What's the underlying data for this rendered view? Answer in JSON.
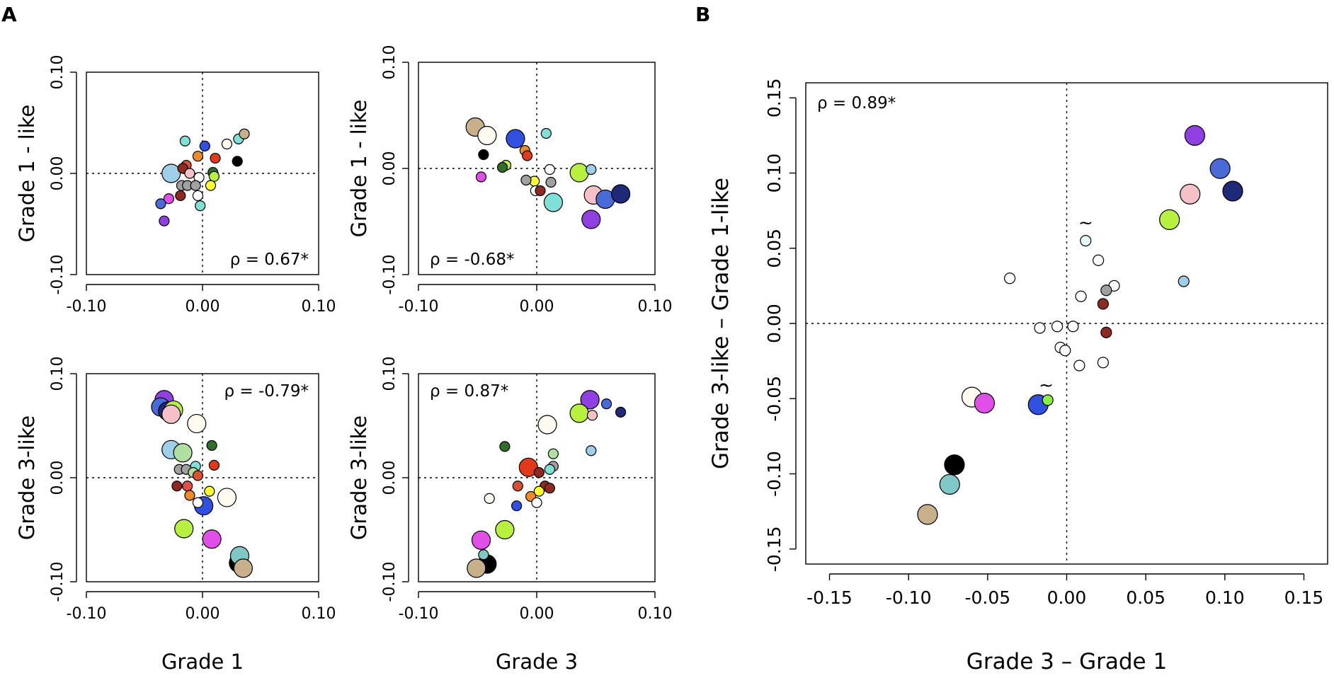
{
  "panels": {
    "A": "A",
    "B": "B"
  },
  "chart_data": [
    {
      "id": "A1",
      "type": "scatter",
      "xlabel": "",
      "ylabel": "Grade 1 - like",
      "xlim": [
        -0.1,
        0.1
      ],
      "ylim": [
        -0.1,
        0.1
      ],
      "xticks": [
        -0.1,
        0.0,
        0.1
      ],
      "yticks": [
        -0.1,
        0.0,
        0.1
      ],
      "xtick_labels": [
        "-0.10",
        "0.00",
        "0.10"
      ],
      "ytick_labels": [
        "-0.10",
        "0.00",
        "0.10"
      ],
      "annotation": "ρ = 0.67*",
      "annotation_position": "bottom-right",
      "points": [
        {
          "x": -0.015,
          "y": 0.032,
          "color": "#7fe0d8",
          "s": 1
        },
        {
          "x": 0.002,
          "y": 0.027,
          "color": "#3050e0",
          "s": 1
        },
        {
          "x": 0.021,
          "y": 0.029,
          "color": "#fffaf0",
          "s": 1
        },
        {
          "x": 0.031,
          "y": 0.034,
          "color": "#7fe0d8",
          "s": 1
        },
        {
          "x": 0.036,
          "y": 0.039,
          "color": "#c8b08a",
          "s": 1
        },
        {
          "x": -0.004,
          "y": 0.017,
          "color": "#f08a28",
          "s": 1
        },
        {
          "x": 0.011,
          "y": 0.015,
          "color": "#e03a18",
          "s": 1
        },
        {
          "x": 0.03,
          "y": 0.012,
          "color": "#000000",
          "s": 1
        },
        {
          "x": -0.014,
          "y": 0.008,
          "color": "#d85030",
          "s": 1
        },
        {
          "x": -0.017,
          "y": 0.005,
          "color": "#8e2a22",
          "s": 1
        },
        {
          "x": -0.027,
          "y": 0.0,
          "color": "#9fcfe8",
          "s": 3
        },
        {
          "x": -0.011,
          "y": 0.0,
          "color": "#f5c0c8",
          "s": 1
        },
        {
          "x": -0.003,
          "y": -0.004,
          "color": "#ffffff",
          "s": 1
        },
        {
          "x": 0.009,
          "y": 0.001,
          "color": "#2e6e28",
          "s": 1
        },
        {
          "x": 0.01,
          "y": -0.003,
          "color": "#b8f040",
          "s": 1
        },
        {
          "x": 0.007,
          "y": -0.012,
          "color": "#ffff30",
          "s": 1
        },
        {
          "x": -0.018,
          "y": -0.012,
          "color": "#a0a0a0",
          "s": 1
        },
        {
          "x": -0.013,
          "y": -0.012,
          "color": "#a0a0a0",
          "s": 1
        },
        {
          "x": -0.006,
          "y": -0.012,
          "color": "#a0a0a0",
          "s": 1
        },
        {
          "x": -0.004,
          "y": -0.022,
          "color": "#ffffff",
          "s": 1
        },
        {
          "x": -0.019,
          "y": -0.022,
          "color": "#8e2a22",
          "s": 1
        },
        {
          "x": -0.029,
          "y": -0.025,
          "color": "#e050e8",
          "s": 1
        },
        {
          "x": -0.002,
          "y": -0.032,
          "color": "#7fe0d8",
          "s": 1
        },
        {
          "x": -0.036,
          "y": -0.03,
          "color": "#4a6ad8",
          "s": 1
        },
        {
          "x": -0.033,
          "y": -0.047,
          "color": "#9040e0",
          "s": 1
        }
      ]
    },
    {
      "id": "A2",
      "type": "scatter",
      "xlabel": "",
      "ylabel": "Grade 1 - like",
      "xlim": [
        -0.1,
        0.1
      ],
      "ylim": [
        -0.1,
        0.1
      ],
      "xticks": [
        -0.1,
        0.0,
        0.1
      ],
      "yticks": [
        -0.1,
        0.0,
        0.1
      ],
      "xtick_labels": [
        "-0.10",
        "0.00",
        "0.10"
      ],
      "ytick_labels": [
        "-0.10",
        "0.00",
        "0.10"
      ],
      "annotation": "ρ = -0.68*",
      "annotation_position": "bottom-left",
      "points": [
        {
          "x": -0.052,
          "y": 0.039,
          "color": "#c8b08a",
          "s": 3
        },
        {
          "x": -0.042,
          "y": 0.031,
          "color": "#fffaf0",
          "s": 3
        },
        {
          "x": -0.018,
          "y": 0.028,
          "color": "#3050e0",
          "s": 3
        },
        {
          "x": 0.008,
          "y": 0.033,
          "color": "#7fe0d8",
          "s": 1
        },
        {
          "x": -0.045,
          "y": 0.013,
          "color": "#000000",
          "s": 1
        },
        {
          "x": -0.01,
          "y": 0.017,
          "color": "#f08a28",
          "s": 1
        },
        {
          "x": -0.008,
          "y": 0.012,
          "color": "#e03a18",
          "s": 1
        },
        {
          "x": -0.026,
          "y": 0.003,
          "color": "#b8f040",
          "s": 1
        },
        {
          "x": -0.029,
          "y": 0.001,
          "color": "#2e6e28",
          "s": 1
        },
        {
          "x": -0.047,
          "y": -0.008,
          "color": "#e050e8",
          "s": 1
        },
        {
          "x": 0.011,
          "y": -0.001,
          "color": "#ffffff",
          "s": 1
        },
        {
          "x": 0.046,
          "y": -0.001,
          "color": "#9fcfe8",
          "s": 1
        },
        {
          "x": 0.036,
          "y": -0.004,
          "color": "#b8f040",
          "s": 3
        },
        {
          "x": -0.002,
          "y": -0.012,
          "color": "#ffff30",
          "s": 1
        },
        {
          "x": -0.009,
          "y": -0.011,
          "color": "#a0a0a0",
          "s": 1
        },
        {
          "x": 0.012,
          "y": -0.013,
          "color": "#a0a0a0",
          "s": 1
        },
        {
          "x": -0.001,
          "y": -0.021,
          "color": "#ffffff",
          "s": 1
        },
        {
          "x": 0.003,
          "y": -0.021,
          "color": "#8e2a22",
          "s": 1
        },
        {
          "x": 0.014,
          "y": -0.032,
          "color": "#7fe0d8",
          "s": 3
        },
        {
          "x": 0.048,
          "y": -0.025,
          "color": "#f5c0c8",
          "s": 3
        },
        {
          "x": 0.058,
          "y": -0.029,
          "color": "#4a6ad8",
          "s": 3
        },
        {
          "x": 0.071,
          "y": -0.024,
          "color": "#1e2a78",
          "s": 3
        },
        {
          "x": 0.046,
          "y": -0.048,
          "color": "#9040e0",
          "s": 3
        }
      ]
    },
    {
      "id": "A3",
      "type": "scatter",
      "xlabel": "Grade 1",
      "ylabel": "Grade 3-like",
      "xlim": [
        -0.1,
        0.1
      ],
      "ylim": [
        -0.1,
        0.1
      ],
      "xticks": [
        -0.1,
        0.0,
        0.1
      ],
      "yticks": [
        -0.1,
        0.0,
        0.1
      ],
      "xtick_labels": [
        "-0.10",
        "0.00",
        "0.10"
      ],
      "ytick_labels": [
        "-0.10",
        "0.00",
        "0.10"
      ],
      "annotation": "ρ = -0.79*",
      "annotation_position": "top-right",
      "points": [
        {
          "x": -0.033,
          "y": 0.075,
          "color": "#9040e0",
          "s": 3
        },
        {
          "x": -0.036,
          "y": 0.068,
          "color": "#4a6ad8",
          "s": 3
        },
        {
          "x": -0.03,
          "y": 0.064,
          "color": "#1e2a78",
          "s": 3
        },
        {
          "x": -0.025,
          "y": 0.065,
          "color": "#b8f040",
          "s": 3
        },
        {
          "x": -0.027,
          "y": 0.061,
          "color": "#f5c0c8",
          "s": 3
        },
        {
          "x": -0.005,
          "y": 0.052,
          "color": "#fffaf0",
          "s": 3
        },
        {
          "x": 0.008,
          "y": 0.031,
          "color": "#2e6e28",
          "s": 1
        },
        {
          "x": -0.027,
          "y": 0.027,
          "color": "#9fcfe8",
          "s": 3
        },
        {
          "x": -0.017,
          "y": 0.024,
          "color": "#b0e0a0",
          "s": 3
        },
        {
          "x": 0.01,
          "y": 0.012,
          "color": "#e03a18",
          "s": 1
        },
        {
          "x": -0.006,
          "y": 0.011,
          "color": "#7fe0d8",
          "s": 1
        },
        {
          "x": -0.02,
          "y": 0.008,
          "color": "#a0a0a0",
          "s": 1
        },
        {
          "x": -0.014,
          "y": 0.008,
          "color": "#a0a0a0",
          "s": 1
        },
        {
          "x": -0.008,
          "y": 0.005,
          "color": "#b0e0a0",
          "s": 1
        },
        {
          "x": -0.004,
          "y": 0.002,
          "color": "#d85030",
          "s": 1
        },
        {
          "x": -0.022,
          "y": -0.008,
          "color": "#8e2a22",
          "s": 1
        },
        {
          "x": -0.013,
          "y": -0.008,
          "color": "#e05048",
          "s": 1
        },
        {
          "x": 0.006,
          "y": -0.013,
          "color": "#ffff30",
          "s": 1
        },
        {
          "x": -0.011,
          "y": -0.017,
          "color": "#f08a28",
          "s": 1
        },
        {
          "x": 0.021,
          "y": -0.019,
          "color": "#fffaf0",
          "s": 3
        },
        {
          "x": -0.004,
          "y": -0.024,
          "color": "#ffffff",
          "s": 1
        },
        {
          "x": 0.001,
          "y": -0.027,
          "color": "#3050e0",
          "s": 3
        },
        {
          "x": -0.016,
          "y": -0.049,
          "color": "#b8f040",
          "s": 3
        },
        {
          "x": 0.008,
          "y": -0.059,
          "color": "#e050e8",
          "s": 3
        },
        {
          "x": 0.031,
          "y": -0.082,
          "color": "#000000",
          "s": 3
        },
        {
          "x": 0.032,
          "y": -0.075,
          "color": "#7fc8c8",
          "s": 3
        },
        {
          "x": 0.035,
          "y": -0.087,
          "color": "#c8b08a",
          "s": 3
        }
      ]
    },
    {
      "id": "A4",
      "type": "scatter",
      "xlabel": "Grade 3",
      "ylabel": "Grade 3-like",
      "xlim": [
        -0.1,
        0.1
      ],
      "ylim": [
        -0.1,
        0.1
      ],
      "xticks": [
        -0.1,
        0.0,
        0.1
      ],
      "yticks": [
        -0.1,
        0.0,
        0.1
      ],
      "xtick_labels": [
        "-0.10",
        "0.00",
        "0.10"
      ],
      "ytick_labels": [
        "-0.10",
        "0.00",
        "0.10"
      ],
      "annotation": "ρ = 0.87*",
      "annotation_position": "top-left",
      "points": [
        {
          "x": 0.045,
          "y": 0.075,
          "color": "#9040e0",
          "s": 3
        },
        {
          "x": 0.059,
          "y": 0.071,
          "color": "#4a6ad8",
          "s": 1
        },
        {
          "x": 0.071,
          "y": 0.063,
          "color": "#1e2a78",
          "s": 1
        },
        {
          "x": 0.036,
          "y": 0.062,
          "color": "#b8f040",
          "s": 3
        },
        {
          "x": 0.047,
          "y": 0.06,
          "color": "#f5c0c8",
          "s": 1
        },
        {
          "x": 0.009,
          "y": 0.051,
          "color": "#fffaf0",
          "s": 3
        },
        {
          "x": -0.027,
          "y": 0.03,
          "color": "#2e6e28",
          "s": 1
        },
        {
          "x": 0.046,
          "y": 0.026,
          "color": "#9fcfe8",
          "s": 1
        },
        {
          "x": 0.014,
          "y": 0.023,
          "color": "#b0e0a0",
          "s": 1
        },
        {
          "x": -0.007,
          "y": 0.01,
          "color": "#e03a18",
          "s": 3
        },
        {
          "x": 0.014,
          "y": 0.011,
          "color": "#a0a0a0",
          "s": 1
        },
        {
          "x": 0.011,
          "y": 0.008,
          "color": "#7fe0d8",
          "s": 1
        },
        {
          "x": 0.002,
          "y": 0.005,
          "color": "#8e2a22",
          "s": 1
        },
        {
          "x": -0.016,
          "y": -0.008,
          "color": "#d85030",
          "s": 1
        },
        {
          "x": 0.007,
          "y": -0.008,
          "color": "#8e2a22",
          "s": 1
        },
        {
          "x": 0.011,
          "y": -0.01,
          "color": "#8e2a22",
          "s": 1
        },
        {
          "x": 0.002,
          "y": -0.013,
          "color": "#ffff30",
          "s": 1
        },
        {
          "x": -0.005,
          "y": -0.018,
          "color": "#f08a28",
          "s": 1
        },
        {
          "x": -0.04,
          "y": -0.02,
          "color": "#fffaf0",
          "s": 1
        },
        {
          "x": -0.017,
          "y": -0.027,
          "color": "#3050e0",
          "s": 1
        },
        {
          "x": 0.0,
          "y": -0.024,
          "color": "#ffffff",
          "s": 1
        },
        {
          "x": -0.027,
          "y": -0.05,
          "color": "#b8f040",
          "s": 3
        },
        {
          "x": -0.045,
          "y": -0.074,
          "color": "#7fc8c8",
          "s": 1
        },
        {
          "x": -0.047,
          "y": -0.06,
          "color": "#e050e8",
          "s": 3
        },
        {
          "x": -0.042,
          "y": -0.083,
          "color": "#000000",
          "s": 3
        },
        {
          "x": -0.051,
          "y": -0.087,
          "color": "#c8b08a",
          "s": 3
        }
      ]
    },
    {
      "id": "B",
      "type": "scatter",
      "xlabel": "Grade 3 – Grade 1",
      "ylabel": "Grade 3-like – Grade 1-like",
      "xlim": [
        -0.165,
        0.165
      ],
      "ylim": [
        -0.16,
        0.16
      ],
      "xticks": [
        -0.15,
        -0.1,
        -0.05,
        0.0,
        0.05,
        0.1,
        0.15
      ],
      "yticks": [
        -0.15,
        -0.1,
        -0.05,
        0.0,
        0.05,
        0.1,
        0.15
      ],
      "xtick_labels": [
        "-0.15",
        "-0.10",
        "-0.05",
        "0.00",
        "0.05",
        "0.10",
        "0.15"
      ],
      "ytick_labels": [
        "-0.15",
        "-0.10",
        "-0.05",
        "0.00",
        "0.05",
        "0.10",
        "0.15"
      ],
      "annotation": "ρ = 0.89*",
      "annotation_position": "top-left",
      "tilde_labels": [
        {
          "text": "~",
          "x": 0.012,
          "y": 0.063
        },
        {
          "text": "~",
          "x": -0.013,
          "y": -0.045
        }
      ],
      "points": [
        {
          "x": 0.081,
          "y": 0.125,
          "color": "#9040e0",
          "s": 3
        },
        {
          "x": 0.097,
          "y": 0.103,
          "color": "#4a6ad8",
          "s": 3
        },
        {
          "x": 0.105,
          "y": 0.088,
          "color": "#1e2a78",
          "s": 3
        },
        {
          "x": 0.078,
          "y": 0.086,
          "color": "#f5c0c8",
          "s": 3
        },
        {
          "x": 0.065,
          "y": 0.069,
          "color": "#b8f040",
          "s": 3
        },
        {
          "x": 0.012,
          "y": 0.055,
          "color": "#e0f8f8",
          "s": 1
        },
        {
          "x": 0.02,
          "y": 0.042,
          "color": "#ffffff",
          "s": 1
        },
        {
          "x": -0.036,
          "y": 0.03,
          "color": "#ffffff",
          "s": 1
        },
        {
          "x": 0.074,
          "y": 0.028,
          "color": "#9fcfe8",
          "s": 1
        },
        {
          "x": 0.03,
          "y": 0.025,
          "color": "#ffffff",
          "s": 1
        },
        {
          "x": 0.025,
          "y": 0.022,
          "color": "#a0a0a0",
          "s": 1
        },
        {
          "x": 0.009,
          "y": 0.018,
          "color": "#ffffff",
          "s": 1
        },
        {
          "x": 0.023,
          "y": 0.013,
          "color": "#8e2a22",
          "s": 1
        },
        {
          "x": -0.017,
          "y": -0.003,
          "color": "#ffffff",
          "s": 1
        },
        {
          "x": -0.006,
          "y": -0.002,
          "color": "#ffffff",
          "s": 1
        },
        {
          "x": 0.004,
          "y": -0.002,
          "color": "#ffffff",
          "s": 1
        },
        {
          "x": 0.025,
          "y": -0.006,
          "color": "#8e2a22",
          "s": 1
        },
        {
          "x": -0.004,
          "y": -0.016,
          "color": "#ffffff",
          "s": 1
        },
        {
          "x": -0.001,
          "y": -0.018,
          "color": "#ffffff",
          "s": 1
        },
        {
          "x": 0.023,
          "y": -0.026,
          "color": "#ffffff",
          "s": 1
        },
        {
          "x": 0.008,
          "y": -0.028,
          "color": "#ffffff",
          "s": 1
        },
        {
          "x": -0.06,
          "y": -0.049,
          "color": "#fffaf0",
          "s": 3
        },
        {
          "x": -0.052,
          "y": -0.053,
          "color": "#e050e8",
          "s": 3
        },
        {
          "x": -0.018,
          "y": -0.054,
          "color": "#3050e0",
          "s": 3
        },
        {
          "x": -0.012,
          "y": -0.051,
          "color": "#88f040",
          "s": 1
        },
        {
          "x": -0.071,
          "y": -0.094,
          "color": "#000000",
          "s": 3
        },
        {
          "x": -0.074,
          "y": -0.107,
          "color": "#7fc8c8",
          "s": 3
        },
        {
          "x": -0.088,
          "y": -0.127,
          "color": "#c8b08a",
          "s": 3
        }
      ]
    }
  ]
}
